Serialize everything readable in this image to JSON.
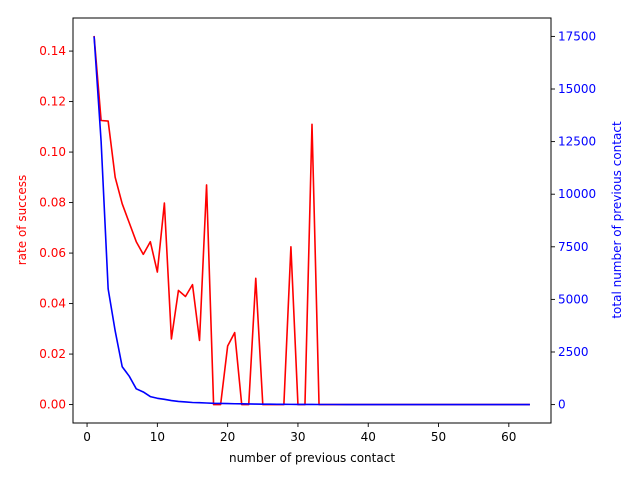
{
  "chart_data": {
    "type": "line",
    "xlabel": "number of previous contact",
    "ylabel_left": "rate of success",
    "ylabel_right": "total number of previous contact",
    "left_color": "#ff0000",
    "right_color": "#0000ff",
    "xlim": [
      -2,
      66
    ],
    "ylim_left": [
      -0.0073,
      0.1531
    ],
    "ylim_right": [
      -875,
      18375
    ],
    "x_ticks": [
      0,
      10,
      20,
      30,
      40,
      50,
      60
    ],
    "y_ticks_left": [
      0.0,
      0.02,
      0.04,
      0.06,
      0.08,
      0.1,
      0.12,
      0.14
    ],
    "y_tick_labels_left": [
      "0.00",
      "0.02",
      "0.04",
      "0.06",
      "0.08",
      "0.10",
      "0.12",
      "0.14"
    ],
    "y_ticks_right": [
      0,
      2500,
      5000,
      7500,
      10000,
      12500,
      15000,
      17500
    ],
    "y_tick_labels_right": [
      "0",
      "2500",
      "5000",
      "7500",
      "10000",
      "12500",
      "15000",
      "17500"
    ],
    "grid": false,
    "series": [
      {
        "axis": "left",
        "x": [
          1,
          2,
          3,
          4,
          5,
          6,
          7,
          8,
          9,
          10,
          11,
          12,
          13,
          14,
          15,
          16,
          17,
          18,
          19,
          20,
          21,
          22,
          23,
          24,
          25,
          26,
          27,
          28,
          29,
          30,
          31,
          32,
          33,
          35,
          37,
          39,
          43,
          51,
          55,
          56,
          58,
          63
        ],
        "values": [
          0.146,
          0.1125,
          0.1123,
          0.09,
          0.0795,
          0.072,
          0.0645,
          0.0595,
          0.0645,
          0.0525,
          0.0798,
          0.026,
          0.0452,
          0.0428,
          0.0475,
          0.0254,
          0.087,
          0.0,
          0.0,
          0.0232,
          0.0285,
          0.0,
          0.0,
          0.05,
          0.0,
          0.0,
          0.0,
          0.0,
          0.0625,
          0.0,
          0.0,
          0.111,
          0.0,
          0.0,
          0.0,
          0.0,
          0.0,
          0.0,
          0.0,
          0.0,
          0.0,
          0.0
        ]
      },
      {
        "axis": "right",
        "x": [
          1,
          2,
          3,
          4,
          5,
          6,
          7,
          8,
          9,
          10,
          11,
          12,
          13,
          14,
          15,
          16,
          17,
          18,
          19,
          20,
          21,
          22,
          23,
          24,
          25,
          26,
          27,
          28,
          29,
          30,
          31,
          32,
          33,
          35,
          37,
          39,
          43,
          51,
          55,
          56,
          58,
          63
        ],
        "values": [
          17500,
          12500,
          5500,
          3500,
          1800,
          1350,
          750,
          600,
          380,
          300,
          250,
          190,
          150,
          125,
          100,
          90,
          75,
          60,
          55,
          50,
          40,
          35,
          30,
          25,
          20,
          18,
          15,
          12,
          10,
          8,
          7,
          6,
          5,
          4,
          3,
          3,
          2,
          1,
          1,
          1,
          1,
          1
        ]
      }
    ]
  }
}
